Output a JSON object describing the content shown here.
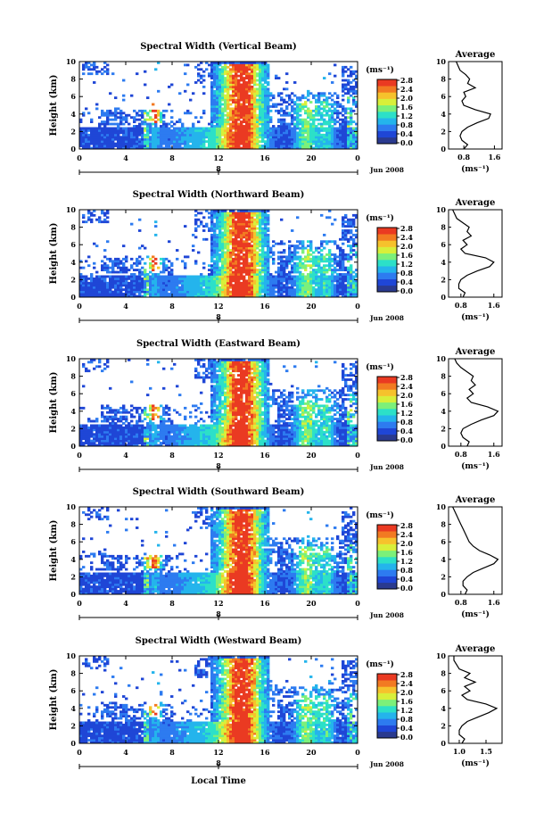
{
  "figure": {
    "xlabel": "Local Time",
    "date_label": "Jun 2008",
    "day_marker": "8",
    "colorbar_unit": "(ms⁻¹)",
    "average_title": "Average",
    "average_unit": "(ms⁻¹)",
    "colorbar_ticks": [
      "0.0",
      "0.4",
      "0.8",
      "1.2",
      "1.6",
      "2.0",
      "2.4",
      "2.8"
    ],
    "colorscale": [
      "#2a3a8f",
      "#1f46d6",
      "#2d7bf0",
      "#24b4ec",
      "#2ce0c8",
      "#7cf07a",
      "#d8ef3a",
      "#f6c22c",
      "#f27a22",
      "#ea3a22"
    ]
  },
  "chart_data": [
    {
      "type": "heatmap",
      "title": "Spectral Width (Vertical Beam)",
      "xlabel": "Local Time",
      "ylabel": "Height (km)",
      "x_ticks": [
        "0",
        "4",
        "8",
        "12",
        "16",
        "20",
        "0"
      ],
      "y_ticks": [
        "0",
        "2",
        "4",
        "6",
        "8",
        "10"
      ],
      "xlim": [
        0,
        24
      ],
      "ylim": [
        0,
        10
      ],
      "value_range": [
        0,
        2.8
      ],
      "profile": {
        "title": "Average",
        "xlabel": "(ms⁻¹)",
        "x_ticks": [
          "0.8",
          "1.6"
        ],
        "xlim": [
          0.4,
          1.8
        ],
        "ylim": [
          0,
          10
        ],
        "height": [
          0,
          0.5,
          1,
          1.5,
          2,
          2.5,
          3,
          3.5,
          4,
          4.5,
          5,
          5.5,
          6,
          6.5,
          7,
          7.5,
          8,
          8.5,
          9,
          9.5,
          10
        ],
        "values": [
          0.8,
          0.9,
          0.75,
          0.7,
          0.75,
          0.9,
          1.15,
          1.45,
          1.5,
          1.1,
          0.8,
          0.75,
          0.85,
          0.8,
          1.1,
          0.9,
          0.95,
          0.85,
          0.7,
          0.65,
          0.6
        ]
      }
    },
    {
      "type": "heatmap",
      "title": "Spectral Width (Northward Beam)",
      "xlabel": "Local Time",
      "ylabel": "Height (km)",
      "x_ticks": [
        "0",
        "4",
        "8",
        "12",
        "16",
        "20",
        "0"
      ],
      "y_ticks": [
        "0",
        "2",
        "4",
        "6",
        "8",
        "10"
      ],
      "xlim": [
        0,
        24
      ],
      "ylim": [
        0,
        10
      ],
      "value_range": [
        0,
        2.8
      ],
      "profile": {
        "title": "Average",
        "xlabel": "(ms⁻¹)",
        "x_ticks": [
          "0.8",
          "1.6"
        ],
        "xlim": [
          0.5,
          1.8
        ],
        "ylim": [
          0,
          10
        ],
        "height": [
          0,
          0.5,
          1,
          1.5,
          2,
          2.5,
          3,
          3.5,
          4,
          4.5,
          5,
          5.5,
          6,
          6.5,
          7,
          7.5,
          8,
          8.5,
          9,
          9.5,
          10
        ],
        "values": [
          0.85,
          0.9,
          0.75,
          0.75,
          0.8,
          0.95,
          1.2,
          1.5,
          1.6,
          1.4,
          0.9,
          0.8,
          0.95,
          0.85,
          1.05,
          0.95,
          1.0,
          0.85,
          0.7,
          0.65,
          0.6
        ]
      }
    },
    {
      "type": "heatmap",
      "title": "Spectral Width (Eastward Beam)",
      "xlabel": "Local Time",
      "ylabel": "Height (km)",
      "x_ticks": [
        "0",
        "4",
        "8",
        "12",
        "16",
        "20",
        "0"
      ],
      "y_ticks": [
        "0",
        "2",
        "4",
        "6",
        "8",
        "10"
      ],
      "xlim": [
        0,
        24
      ],
      "ylim": [
        0,
        10
      ],
      "value_range": [
        0,
        2.8
      ],
      "profile": {
        "title": "Average",
        "xlabel": "(ms⁻¹)",
        "x_ticks": [
          "0.8",
          "1.6"
        ],
        "xlim": [
          0.5,
          1.8
        ],
        "ylim": [
          0,
          10
        ],
        "height": [
          0,
          0.5,
          1,
          1.5,
          2,
          2.5,
          3,
          3.5,
          4,
          4.5,
          5,
          5.5,
          6,
          6.5,
          7,
          7.5,
          8,
          8.5,
          9,
          9.5,
          10
        ],
        "values": [
          0.95,
          1.0,
          0.85,
          0.8,
          0.85,
          1.05,
          1.3,
          1.6,
          1.7,
          1.45,
          1.05,
          0.95,
          1.1,
          1.0,
          1.15,
          1.05,
          1.1,
          0.95,
          0.8,
          0.7,
          0.65
        ]
      }
    },
    {
      "type": "heatmap",
      "title": "Spectral Width (Southward Beam)",
      "xlabel": "Local Time",
      "ylabel": "Height (km)",
      "x_ticks": [
        "0",
        "4",
        "8",
        "12",
        "16",
        "20",
        "0"
      ],
      "y_ticks": [
        "0",
        "2",
        "4",
        "6",
        "8",
        "10"
      ],
      "xlim": [
        0,
        24
      ],
      "ylim": [
        0,
        10
      ],
      "value_range": [
        0,
        2.8
      ],
      "profile": {
        "title": "Average",
        "xlabel": "(ms⁻¹)",
        "x_ticks": [
          "0.8",
          "1.6"
        ],
        "xlim": [
          0.5,
          1.8
        ],
        "ylim": [
          0,
          10
        ],
        "height": [
          0,
          0.5,
          1,
          1.5,
          2,
          2.5,
          3,
          3.5,
          4,
          4.5,
          5,
          5.5,
          6,
          6.5,
          7,
          7.5,
          8,
          8.5,
          9,
          9.5,
          10
        ],
        "values": [
          0.9,
          0.95,
          0.85,
          0.85,
          0.95,
          1.1,
          1.35,
          1.6,
          1.7,
          1.5,
          1.25,
          1.1,
          1.0,
          0.95,
          0.9,
          0.85,
          0.8,
          0.75,
          0.7,
          0.65,
          0.6
        ]
      }
    },
    {
      "type": "heatmap",
      "title": "Spectral Width (Westward Beam)",
      "xlabel": "Local Time",
      "ylabel": "Height (km)",
      "x_ticks": [
        "0",
        "4",
        "8",
        "12",
        "16",
        "20",
        "0"
      ],
      "y_ticks": [
        "0",
        "2",
        "4",
        "6",
        "8",
        "10"
      ],
      "xlim": [
        0,
        24
      ],
      "ylim": [
        0,
        10
      ],
      "value_range": [
        0,
        2.8
      ],
      "profile": {
        "title": "Average",
        "xlabel": "(ms⁻¹)",
        "x_ticks": [
          "1.0",
          "1.5"
        ],
        "xlim": [
          0.8,
          1.8
        ],
        "ylim": [
          0,
          10
        ],
        "height": [
          0,
          0.5,
          1,
          1.5,
          2,
          2.5,
          3,
          3.5,
          4,
          4.5,
          5,
          5.5,
          6,
          6.5,
          7,
          7.5,
          8,
          8.5,
          9,
          9.5,
          10
        ],
        "values": [
          1.05,
          1.1,
          1.0,
          1.0,
          1.05,
          1.15,
          1.35,
          1.55,
          1.7,
          1.5,
          1.15,
          1.05,
          1.2,
          1.1,
          1.3,
          1.1,
          1.2,
          1.0,
          0.95,
          0.9,
          0.9
        ]
      }
    }
  ]
}
